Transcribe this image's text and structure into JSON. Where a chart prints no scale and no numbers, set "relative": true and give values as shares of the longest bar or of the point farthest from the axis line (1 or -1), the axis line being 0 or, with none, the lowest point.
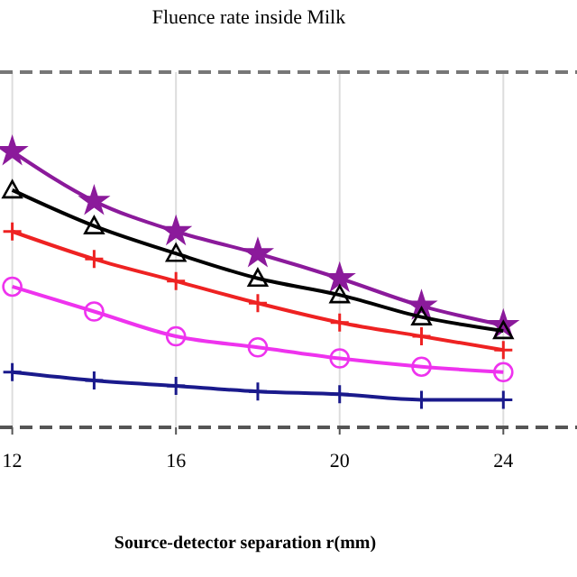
{
  "chart_data": {
    "type": "line",
    "title": "Fluence rate inside Milk",
    "xlabel": "Source-detector separation r(mm)",
    "relative": true,
    "xlim": [
      11.7,
      25.8
    ],
    "xticks": [
      12,
      16,
      20,
      24
    ],
    "grid": "x",
    "x": [
      12,
      14,
      16,
      18,
      20,
      22,
      24
    ],
    "series": [
      {
        "color": "#8b1a9b",
        "marker": "star",
        "values": [
          1,
          0.82,
          0.71,
          0.63,
          0.54,
          0.44,
          0.37
        ]
      },
      {
        "color": "#000000",
        "marker": "triangle",
        "values": [
          0.86,
          0.73,
          0.63,
          0.54,
          0.48,
          0.4,
          0.35
        ]
      },
      {
        "color": "#ee2222",
        "marker": "cross",
        "values": [
          0.71,
          0.61,
          0.53,
          0.45,
          0.38,
          0.33,
          0.28
        ]
      },
      {
        "color": "#ee33ee",
        "marker": "circle",
        "values": [
          0.51,
          0.42,
          0.33,
          0.29,
          0.25,
          0.22,
          0.2
        ]
      },
      {
        "color": "#1a1a8c",
        "marker": "cross",
        "values": [
          0.2,
          0.17,
          0.15,
          0.13,
          0.12,
          0.1,
          0.1
        ]
      }
    ]
  }
}
